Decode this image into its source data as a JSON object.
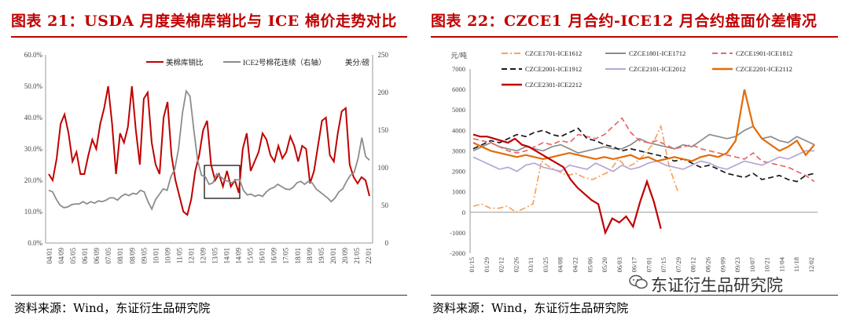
{
  "left_panel": {
    "title": "图表 21：USDA 月度美棉库销比与 ICE 棉价走势对比",
    "source": "资料来源：Wind，东证衍生品研究院"
  },
  "right_panel": {
    "title": "图表 22：CZCE1 月合约-ICE12 月合约盘面价差情况",
    "source": "资料来源：Wind，东证衍生品研究院"
  },
  "watermark": "东证衍生品研究院",
  "colors": {
    "title_red": "#c00000",
    "series_red": "#c00000",
    "series_gray": "#8c8c8c"
  },
  "chart_data": [
    {
      "type": "line",
      "title": "USDA 月度美棉库销比与 ICE 棉价走势对比",
      "left_axis": {
        "ticks": [
          "0.0%",
          "10.0%",
          "20.0%",
          "30.0%",
          "40.0%",
          "50.0%",
          "60.0%"
        ],
        "ylim": [
          0,
          60
        ]
      },
      "right_axis": {
        "label": "美分/磅",
        "ticks": [
          "0",
          "50",
          "100",
          "150",
          "200",
          "250"
        ],
        "ylim": [
          0,
          250
        ]
      },
      "x_ticks": [
        "04/01",
        "04/09",
        "05/05",
        "06/01",
        "06/09",
        "07/05",
        "08/01",
        "08/09",
        "09/05",
        "10/01",
        "10/09",
        "11/05",
        "12/01",
        "12/09",
        "13/05",
        "14/01",
        "14/09",
        "15/05",
        "16/01",
        "16/09",
        "17/05",
        "18/01",
        "18/09",
        "19/05",
        "20/01",
        "20/09",
        "21/05",
        "22/01"
      ],
      "annotation": "box highlighting 2013-2014",
      "series": [
        {
          "name": "美棉库销比",
          "axis": "left",
          "color": "#c00000",
          "values": [
            22,
            20,
            27,
            38,
            41,
            35,
            26,
            29,
            22,
            22,
            28,
            33,
            30,
            38,
            43,
            50,
            38,
            22,
            35,
            32,
            37,
            50,
            36,
            25,
            46,
            48,
            32,
            25,
            22,
            40,
            45,
            28,
            20,
            15,
            10,
            9,
            14,
            23,
            28,
            36,
            39,
            25,
            20,
            22,
            18,
            23,
            18,
            20,
            16,
            30,
            35,
            23,
            26,
            29,
            35,
            33,
            28,
            26,
            31,
            27,
            29,
            34,
            31,
            26,
            31,
            30,
            19,
            23,
            31,
            39,
            40,
            28,
            26,
            35,
            42,
            43,
            25,
            21,
            19,
            21,
            20,
            15
          ]
        },
        {
          "name": "ICE2号棉花连续（右轴）",
          "axis": "right",
          "color": "#8c8c8c",
          "values": [
            70,
            68,
            58,
            50,
            47,
            48,
            51,
            52,
            52,
            55,
            52,
            55,
            53,
            56,
            55,
            57,
            60,
            60,
            57,
            62,
            65,
            63,
            66,
            65,
            70,
            68,
            55,
            45,
            58,
            65,
            72,
            70,
            88,
            98,
            125,
            172,
            202,
            195,
            150,
            110,
            90,
            88,
            78,
            80,
            92,
            88,
            84,
            82,
            80,
            84,
            84,
            70,
            64,
            65,
            62,
            64,
            62,
            68,
            72,
            74,
            78,
            75,
            72,
            71,
            74,
            80,
            82,
            78,
            82,
            80,
            72,
            68,
            64,
            60,
            55,
            60,
            68,
            72,
            82,
            90,
            94,
            112,
            140,
            115,
            110
          ]
        }
      ]
    },
    {
      "type": "line",
      "title": "CZCE1 月合约-ICE12 月合约盘面价差情况",
      "y_unit": "元/吨",
      "ylim": [
        -2000,
        7000
      ],
      "y_ticks": [
        "-2000",
        "-1000",
        "0",
        "1000",
        "2000",
        "3000",
        "4000",
        "5000",
        "6000",
        "7000"
      ],
      "x_ticks": [
        "01/15",
        "01/29",
        "02/12",
        "02/26",
        "03/11",
        "03/25",
        "04/08",
        "04/22",
        "05/06",
        "05/20",
        "06/03",
        "06/17",
        "07/01",
        "07/15",
        "07/29",
        "08/12",
        "08/26",
        "09/09",
        "09/23",
        "10/07",
        "10/21",
        "11/04",
        "11/18",
        "12/02"
      ],
      "series": [
        {
          "name": "CZCE1701-ICE1612",
          "color": "#f4a460",
          "style": "dash-dot",
          "values": [
            300,
            400,
            200,
            200,
            300,
            0,
            200,
            400,
            2500,
            2200,
            2000,
            1800,
            1900,
            1700,
            1600,
            1800,
            2000,
            2600,
            2200,
            2400,
            2800,
            3300,
            4200,
            2200,
            1000
          ]
        },
        {
          "name": "CZCE1801-ICE1712",
          "color": "#8c8c8c",
          "style": "solid",
          "values": [
            3000,
            3200,
            3400,
            3200,
            3100,
            3000,
            3200,
            3100,
            3000,
            3200,
            3300,
            3100,
            2900,
            3000,
            3100,
            3200,
            3100,
            3100,
            3300,
            3600,
            3400,
            3300,
            3200,
            3100,
            3300,
            3200,
            3500,
            3800,
            3700,
            3600,
            3700,
            4000,
            4200,
            3600,
            3700,
            3500,
            3400,
            3700,
            3500,
            3300
          ]
        },
        {
          "name": "CZCE1901-ICE1812",
          "color": "#e8676b",
          "style": "dash",
          "values": [
            3600,
            3500,
            3400,
            3200,
            3000,
            2900,
            3000,
            3200,
            3400,
            3300,
            3500,
            3400,
            3800,
            3700,
            3600,
            3800,
            4200,
            4600,
            3900,
            3500,
            3400,
            3500,
            3300,
            3100,
            3200,
            3300,
            3100,
            3000,
            2900,
            2800,
            2700,
            2600,
            2900,
            2500,
            2400,
            2300,
            2200,
            2000,
            1800,
            1500
          ]
        },
        {
          "name": "CZCE2001-ICE1912",
          "color": "#1a1a1a",
          "style": "dash",
          "values": [
            3100,
            3300,
            3500,
            3400,
            3600,
            3800,
            3700,
            3900,
            4000,
            3800,
            3700,
            3900,
            4100,
            3600,
            3500,
            3300,
            3200,
            3000,
            3100,
            3000,
            2900,
            2800,
            2700,
            2500,
            2600,
            2400,
            2200,
            2300,
            2100,
            1900,
            1800,
            1700,
            1900,
            1600,
            1700,
            1800,
            1600,
            1500,
            1800,
            1900
          ]
        },
        {
          "name": "CZCE2101-ICE2012",
          "color": "#b7a5d6",
          "style": "solid",
          "values": [
            2700,
            2500,
            2300,
            2100,
            2200,
            2000,
            2300,
            2400,
            2200,
            2100,
            2000,
            2300,
            2200,
            2100,
            2400,
            2200,
            2000,
            2300,
            2100,
            2200,
            2400,
            2500,
            2300,
            2200,
            2100,
            2300,
            2500,
            2400,
            2200,
            2100,
            2300,
            2500,
            2400,
            2300,
            2500,
            2700,
            2600,
            2800,
            3000,
            3000
          ]
        },
        {
          "name": "CZCE2201-ICE2112",
          "color": "#e36c09",
          "style": "solid",
          "values": [
            3400,
            3200,
            3000,
            2900,
            2800,
            2700,
            2800,
            2700,
            2600,
            2700,
            2800,
            2900,
            2800,
            2700,
            2600,
            2700,
            2600,
            2700,
            2800,
            2600,
            2700,
            2500,
            2600,
            2700,
            2600,
            2500,
            2700,
            2800,
            2700,
            2900,
            3500,
            6000,
            4200,
            3600,
            3300,
            3000,
            3200,
            3500,
            2800,
            3300
          ]
        },
        {
          "name": "CZCE2301-ICE2212",
          "color": "#c00000",
          "style": "solid",
          "values": [
            3800,
            3700,
            3700,
            3600,
            3500,
            3400,
            3600,
            3300,
            3200,
            3000,
            2800,
            2600,
            2400,
            2200,
            1600,
            1200,
            900,
            600,
            400,
            -1000,
            -300,
            -500,
            -200,
            -700,
            500,
            1500,
            500,
            -800
          ]
        }
      ]
    }
  ]
}
